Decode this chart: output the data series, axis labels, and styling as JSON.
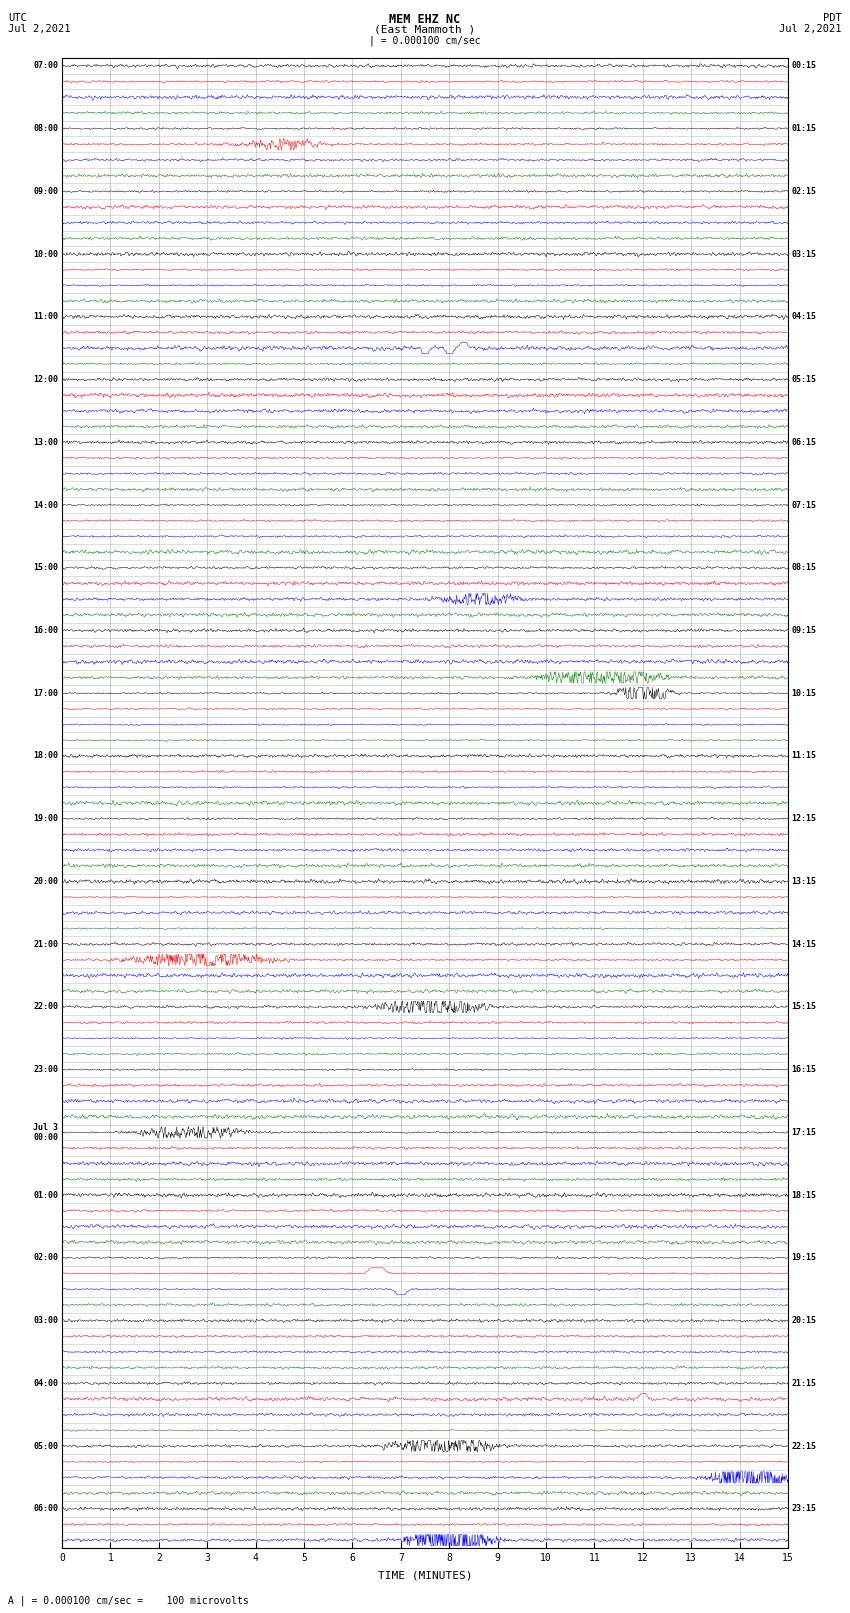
{
  "title_line1": "MEM EHZ NC",
  "title_line2": "(East Mammoth )",
  "scale_bar": "| = 0.000100 cm/sec",
  "left_label_top": "UTC",
  "left_label_date": "Jul 2,2021",
  "right_label_top": "PDT",
  "right_label_date": "Jul 2,2021",
  "bottom_label": "TIME (MINUTES)",
  "bottom_note": "A | = 0.000100 cm/sec =    100 microvolts",
  "utc_times": [
    "07:00",
    "",
    "",
    "",
    "08:00",
    "",
    "",
    "",
    "09:00",
    "",
    "",
    "",
    "10:00",
    "",
    "",
    "",
    "11:00",
    "",
    "",
    "",
    "12:00",
    "",
    "",
    "",
    "13:00",
    "",
    "",
    "",
    "14:00",
    "",
    "",
    "",
    "15:00",
    "",
    "",
    "",
    "16:00",
    "",
    "",
    "",
    "17:00",
    "",
    "",
    "",
    "18:00",
    "",
    "",
    "",
    "19:00",
    "",
    "",
    "",
    "20:00",
    "",
    "",
    "",
    "21:00",
    "",
    "",
    "",
    "22:00",
    "",
    "",
    "",
    "23:00",
    "",
    "",
    "",
    "Jul 3\n00:00",
    "",
    "",
    "",
    "01:00",
    "",
    "",
    "",
    "02:00",
    "",
    "",
    "",
    "03:00",
    "",
    "",
    "",
    "04:00",
    "",
    "",
    "",
    "05:00",
    "",
    "",
    "",
    "06:00",
    "",
    ""
  ],
  "pdt_times": [
    "00:15",
    "",
    "",
    "",
    "01:15",
    "",
    "",
    "",
    "02:15",
    "",
    "",
    "",
    "03:15",
    "",
    "",
    "",
    "04:15",
    "",
    "",
    "",
    "05:15",
    "",
    "",
    "",
    "06:15",
    "",
    "",
    "",
    "07:15",
    "",
    "",
    "",
    "08:15",
    "",
    "",
    "",
    "09:15",
    "",
    "",
    "",
    "10:15",
    "",
    "",
    "",
    "11:15",
    "",
    "",
    "",
    "12:15",
    "",
    "",
    "",
    "13:15",
    "",
    "",
    "",
    "14:15",
    "",
    "",
    "",
    "15:15",
    "",
    "",
    "",
    "16:15",
    "",
    "",
    "",
    "17:15",
    "",
    "",
    "",
    "18:15",
    "",
    "",
    "",
    "19:15",
    "",
    "",
    "",
    "20:15",
    "",
    "",
    "",
    "21:15",
    "",
    "",
    "",
    "22:15",
    "",
    "",
    "",
    "23:15",
    "",
    ""
  ],
  "colors": [
    "black",
    "red",
    "blue",
    "green"
  ],
  "n_rows": 95,
  "n_minutes": 15,
  "bg_color": "white",
  "trace_amplitude": 0.38,
  "grid_color": "#888888",
  "xmin": 0,
  "xmax": 15,
  "figwidth": 8.5,
  "figheight": 16.13,
  "dpi": 100
}
